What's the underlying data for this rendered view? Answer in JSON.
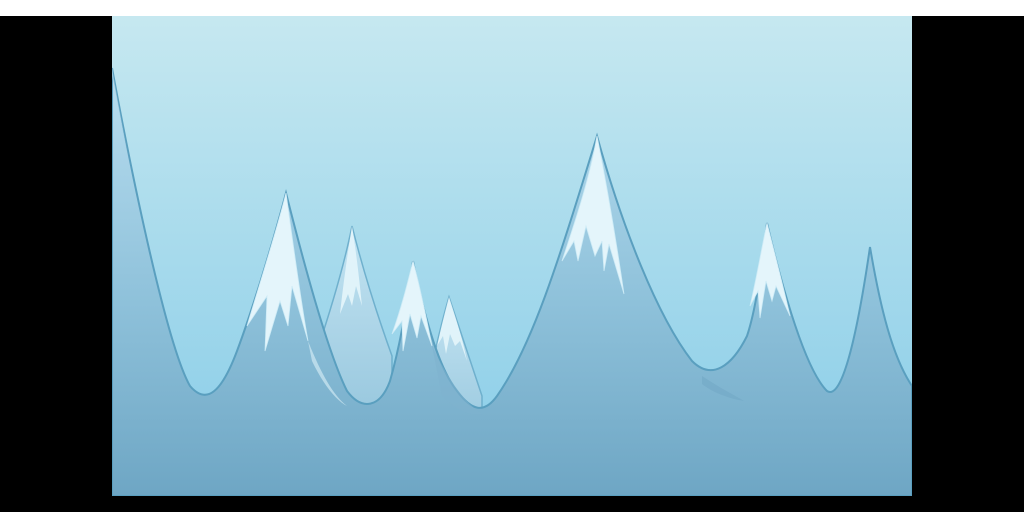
{
  "scene": {
    "description_colors": {
      "sky_top": "#c6e8f0",
      "sky_bottom": "#8fd0ea",
      "mountain_stroke": "#5a9fbf",
      "mountain_fill_top": "#b6dcec",
      "mountain_fill_bottom": "#72a9c6",
      "snow": "#e4f5fb",
      "snow_edge": "#cdebf6",
      "letterbox": "#000000",
      "top_bar": "#ffffff"
    }
  }
}
